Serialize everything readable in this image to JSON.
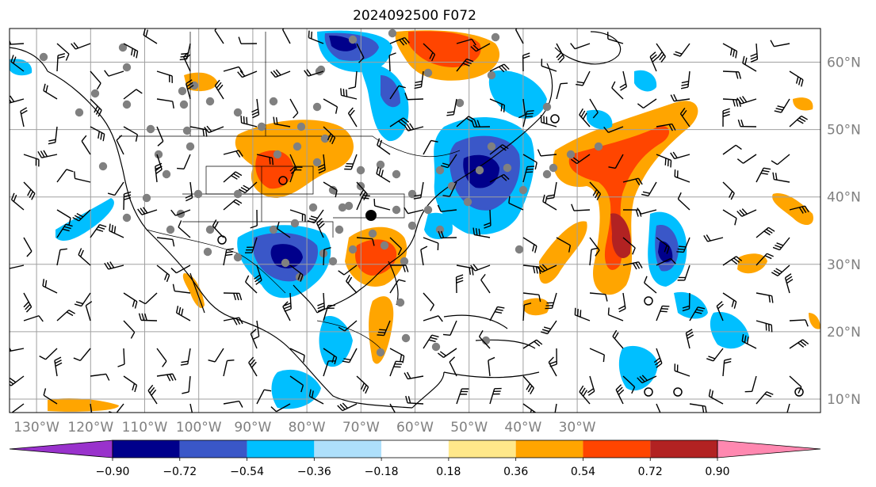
{
  "title": "2024092500 F072",
  "map": {
    "lon_range": [
      -135,
      15
    ],
    "lat_range": [
      8,
      65
    ],
    "lon_ticks": [
      "130°W",
      "120°W",
      "110°W",
      "100°W",
      "90°W",
      "80°W",
      "70°W",
      "60°W",
      "50°W",
      "40°W",
      "30°W"
    ],
    "lat_ticks": [
      "60°N",
      "50°N",
      "40°N",
      "30°N",
      "20°N",
      "10°N"
    ],
    "gridline_color": "#a0a0a0",
    "land_outline_color": "#000000"
  },
  "colorbar": {
    "labels": [
      "−0.90",
      "−0.72",
      "−0.54",
      "−0.36",
      "−0.18",
      "0.18",
      "0.36",
      "0.54",
      "0.72",
      "0.90"
    ],
    "colors": [
      "#9932cc",
      "#00008b",
      "#3a57c8",
      "#00bfff",
      "#aee0fb",
      "#ffffff",
      "#ffe88a",
      "#ffa500",
      "#ff4500",
      "#b22222",
      "#ff88b0"
    ],
    "extend": "both"
  },
  "fields": {
    "positive_color_low": "#ffa500",
    "positive_color_mid": "#ff4500",
    "positive_color_high": "#b22222",
    "negative_color_low": "#00bfff",
    "negative_color_mid": "#3a57c8",
    "negative_color_high": "#00008b",
    "station_marker_color": "#808080"
  }
}
